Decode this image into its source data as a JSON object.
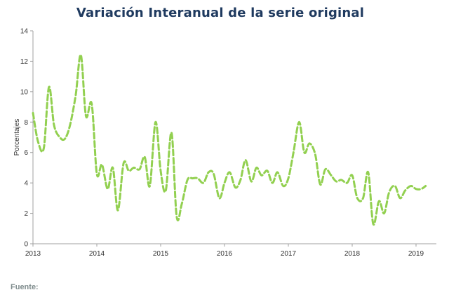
{
  "chart_data": {
    "type": "line",
    "title": "Variación Interanual de la serie original",
    "xlabel": "",
    "ylabel": "Porcentajes",
    "x_ticks": [
      "2013",
      "2014",
      "2015",
      "2016",
      "2017",
      "2018",
      "2019"
    ],
    "y_ticks": [
      "0",
      "2",
      "4",
      "6",
      "8",
      "10",
      "12",
      "14"
    ],
    "xlim": [
      2013,
      2019.15
    ],
    "ylim": [
      0,
      14
    ],
    "grid": false,
    "legend": "none",
    "series": [
      {
        "color": "#92d050",
        "line_style": "dashed",
        "x": [
          2013.0,
          2013.08,
          2013.17,
          2013.25,
          2013.33,
          2013.42,
          2013.5,
          2013.58,
          2013.67,
          2013.75,
          2013.83,
          2013.92,
          2014.0,
          2014.08,
          2014.17,
          2014.25,
          2014.33,
          2014.42,
          2014.5,
          2014.58,
          2014.67,
          2014.75,
          2014.83,
          2014.92,
          2015.0,
          2015.08,
          2015.17,
          2015.25,
          2015.33,
          2015.42,
          2015.5,
          2015.58,
          2015.67,
          2015.75,
          2015.83,
          2015.92,
          2016.0,
          2016.08,
          2016.17,
          2016.25,
          2016.33,
          2016.42,
          2016.5,
          2016.58,
          2016.67,
          2016.75,
          2016.83,
          2016.92,
          2017.0,
          2017.08,
          2017.17,
          2017.25,
          2017.33,
          2017.42,
          2017.5,
          2017.58,
          2017.67,
          2017.75,
          2017.83,
          2017.92,
          2018.0,
          2018.08,
          2018.17,
          2018.25,
          2018.33,
          2018.42,
          2018.5,
          2018.58,
          2018.67,
          2018.75,
          2018.83,
          2018.92,
          2019.0,
          2019.08,
          2019.15
        ],
        "values": [
          8.6,
          6.7,
          6.3,
          10.3,
          7.8,
          7.0,
          6.9,
          7.8,
          9.8,
          12.4,
          8.4,
          9.2,
          4.6,
          5.2,
          3.6,
          5.0,
          2.2,
          5.3,
          4.8,
          5.0,
          4.9,
          5.7,
          3.8,
          8.0,
          4.8,
          3.5,
          7.3,
          1.8,
          2.6,
          4.2,
          4.3,
          4.3,
          4.0,
          4.7,
          4.6,
          3.0,
          4.0,
          4.7,
          3.7,
          4.2,
          5.5,
          4.1,
          5.0,
          4.5,
          4.8,
          4.0,
          4.7,
          3.8,
          4.3,
          6.0,
          8.0,
          6.0,
          6.6,
          5.9,
          3.9,
          4.9,
          4.5,
          4.1,
          4.2,
          4.0,
          4.5,
          3.0,
          3.0,
          4.7,
          1.3,
          2.8,
          2.0,
          3.4,
          3.8,
          3.0,
          3.5,
          3.8,
          3.6,
          3.6,
          3.8
        ]
      }
    ]
  },
  "source_label": "Fuente:"
}
